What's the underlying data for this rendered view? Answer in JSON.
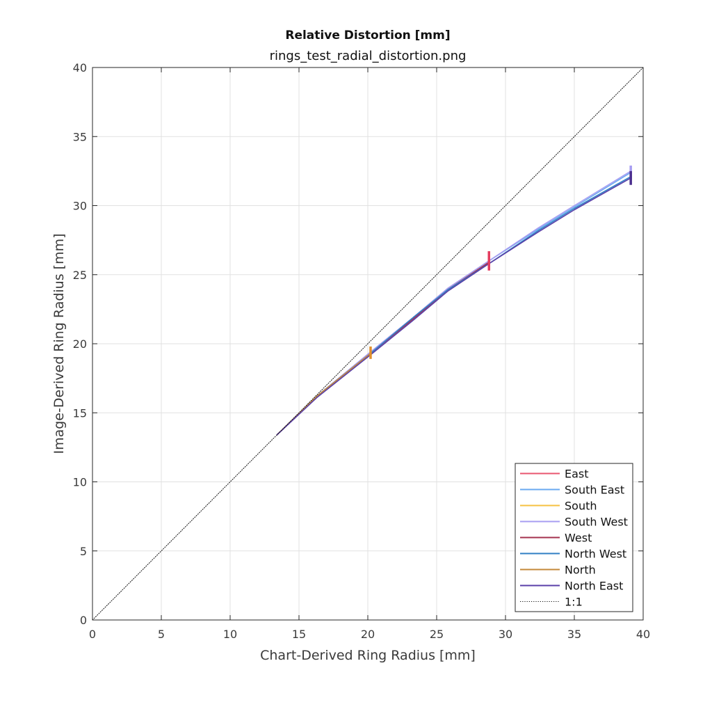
{
  "chart_data": {
    "type": "line",
    "title": "Relative Distortion [mm]",
    "subtitle": "rings_test_radial_distortion.png",
    "xlabel": "Chart-Derived Ring Radius [mm]",
    "ylabel": "Image-Derived Ring Radius [mm]",
    "xlim": [
      0,
      40
    ],
    "ylim": [
      0,
      40
    ],
    "xticks": [
      0,
      5,
      10,
      15,
      20,
      25,
      30,
      35,
      40
    ],
    "yticks": [
      0,
      5,
      10,
      15,
      20,
      25,
      30,
      35,
      40
    ],
    "grid": true,
    "legend_position": "bottom-right",
    "series": [
      {
        "name": "East",
        "color": "#e8566f",
        "x": [
          13.4,
          16.3,
          20.2,
          23.3,
          25.8,
          28.8
        ],
        "y": [
          13.4,
          16.2,
          19.4,
          21.9,
          24.0,
          26.0
        ]
      },
      {
        "name": "South East",
        "color": "#6aa9f0",
        "x": [
          13.4,
          16.3,
          20.2,
          23.3,
          25.8,
          28.8,
          32.4,
          35.0,
          39.1
        ],
        "y": [
          13.4,
          16.2,
          19.4,
          21.9,
          24.0,
          26.0,
          28.3,
          29.9,
          32.4
        ]
      },
      {
        "name": "South",
        "color": "#f6c142",
        "x": [
          13.4,
          16.3,
          20.2
        ],
        "y": [
          13.4,
          16.2,
          19.3
        ]
      },
      {
        "name": "South West",
        "color": "#a79df2",
        "x": [
          13.4,
          16.3,
          20.2,
          23.3,
          25.8,
          28.8,
          32.4,
          35.0,
          39.1
        ],
        "y": [
          13.4,
          16.2,
          19.4,
          21.9,
          24.0,
          26.0,
          28.4,
          30.0,
          32.5
        ]
      },
      {
        "name": "West",
        "color": "#a3304d",
        "x": [
          13.4,
          16.3,
          20.2,
          23.3,
          25.8,
          28.8
        ],
        "y": [
          13.4,
          16.2,
          19.3,
          21.8,
          23.9,
          25.9
        ]
      },
      {
        "name": "North West",
        "color": "#2f7fc4",
        "x": [
          13.4,
          16.3,
          20.2,
          23.3,
          25.8,
          28.8,
          32.4,
          35.0,
          39.1
        ],
        "y": [
          13.4,
          16.2,
          19.3,
          21.9,
          23.9,
          25.8,
          28.2,
          29.8,
          32.1
        ]
      },
      {
        "name": "North",
        "color": "#c4893a",
        "x": [
          13.4,
          16.3,
          20.2
        ],
        "y": [
          13.4,
          16.2,
          19.3
        ]
      },
      {
        "name": "North East",
        "color": "#5a3fa8",
        "x": [
          13.4,
          16.3,
          20.2,
          23.3,
          25.8,
          28.8,
          32.4,
          35.0,
          39.1
        ],
        "y": [
          13.4,
          16.1,
          19.2,
          21.7,
          23.8,
          25.8,
          28.1,
          29.7,
          32.0
        ]
      },
      {
        "name": "1:1",
        "color": "#111111",
        "dashed": true,
        "x": [
          0,
          40
        ],
        "y": [
          0,
          40
        ]
      }
    ],
    "error_bars": [
      {
        "series": "North",
        "x": 20.2,
        "ymin": 18.9,
        "ymax": 19.8,
        "color": "#e0902e"
      },
      {
        "series": "East",
        "x": 28.8,
        "ymin": 25.3,
        "ymax": 26.7,
        "color": "#e43d5f"
      },
      {
        "series": "South West",
        "x": 39.1,
        "ymin": 31.9,
        "ymax": 32.9,
        "color": "#a79df2"
      },
      {
        "series": "North East",
        "x": 39.1,
        "ymin": 31.5,
        "ymax": 32.5,
        "color": "#4b2e8e"
      }
    ]
  }
}
